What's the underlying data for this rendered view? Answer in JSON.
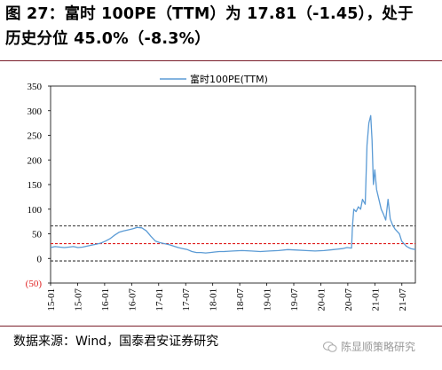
{
  "figure": {
    "title_line1": "图 27：富时 100PE（TTM）为 17.81（-1.45），处于",
    "title_line2": "历史分位 45.0%（-8.3%）",
    "source": "数据来源：Wind，国泰君安证券研究",
    "watermark": "陈显顺策略研究"
  },
  "colors": {
    "line": "#5b9bd5",
    "red_dash": "#e02020",
    "black_dash": "#333333",
    "rule": "#7a1f2b"
  },
  "chart_data": {
    "type": "line",
    "title": "",
    "legend": [
      "富时100PE(TTM)"
    ],
    "legend_position": "top-center",
    "xlabel": "",
    "ylabel": "",
    "ylim": [
      -50,
      350
    ],
    "yticks": [
      350,
      300,
      250,
      200,
      150,
      100,
      50,
      0,
      -50
    ],
    "ytick_labels": [
      "350",
      "300",
      "250",
      "200",
      "150",
      "100",
      "50",
      "0",
      "(50)"
    ],
    "xticks": [
      "15-01",
      "15-07",
      "16-01",
      "16-07",
      "17-01",
      "17-07",
      "18-01",
      "18-07",
      "19-01",
      "19-07",
      "20-01",
      "20-07",
      "21-01",
      "21-07"
    ],
    "xlim": [
      0,
      80
    ],
    "grid": false,
    "reference_lines": [
      {
        "y": 66,
        "style": "dash",
        "color": "black"
      },
      {
        "y": 30,
        "style": "dash",
        "color": "red"
      },
      {
        "y": -5,
        "style": "dash",
        "color": "black"
      }
    ],
    "series": [
      {
        "name": "富时100PE(TTM)",
        "x": [
          0,
          1,
          2,
          3,
          4,
          5,
          6,
          7,
          8,
          9,
          10,
          11,
          12,
          13,
          14,
          15,
          16,
          17,
          18,
          19,
          20,
          21,
          22,
          23,
          24,
          25,
          26,
          27,
          28,
          29,
          30,
          31,
          32,
          33,
          34,
          35,
          36,
          37,
          38,
          40,
          42,
          44,
          46,
          48,
          50,
          52,
          54,
          56,
          58,
          60,
          62,
          64,
          65,
          66,
          66.2,
          66.5,
          67,
          67.5,
          68,
          68.4,
          69,
          69.4,
          69.8,
          70.2,
          70.5,
          70.8,
          71.1,
          71.5,
          72,
          72.5,
          73,
          73.5,
          74,
          74.5,
          75,
          75.5,
          76,
          76.5,
          77,
          77.5,
          78,
          78.5,
          79,
          80
        ],
        "values": [
          22,
          24,
          23,
          22,
          23,
          24,
          22,
          23,
          25,
          27,
          29,
          31,
          35,
          40,
          47,
          53,
          56,
          58,
          60,
          63,
          62,
          56,
          45,
          35,
          32,
          30,
          28,
          25,
          22,
          20,
          18,
          14,
          12,
          12,
          11,
          12,
          13,
          14,
          14,
          15,
          16,
          15,
          14,
          15,
          16,
          18,
          17,
          16,
          15,
          16,
          18,
          20,
          22,
          21,
          65,
          100,
          95,
          105,
          100,
          120,
          110,
          230,
          275,
          290,
          240,
          150,
          180,
          140,
          120,
          100,
          90,
          78,
          120,
          80,
          68,
          60,
          55,
          50,
          35,
          30,
          25,
          22,
          20,
          18
        ]
      }
    ]
  }
}
